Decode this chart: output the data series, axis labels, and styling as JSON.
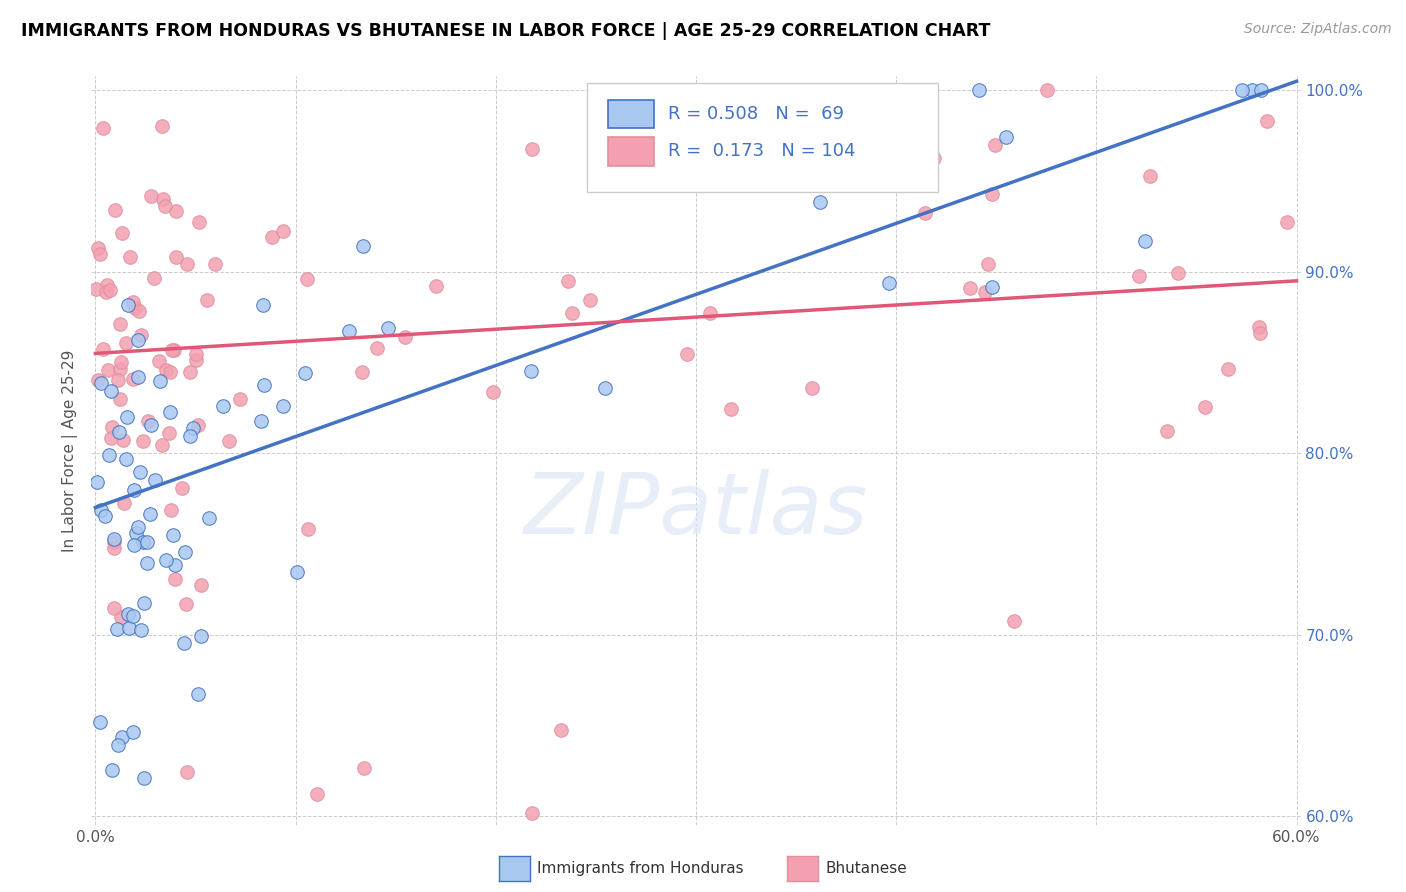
{
  "title": "IMMIGRANTS FROM HONDURAS VS BHUTANESE IN LABOR FORCE | AGE 25-29 CORRELATION CHART",
  "source": "Source: ZipAtlas.com",
  "ylabel": "In Labor Force | Age 25-29",
  "xmin": 0.0,
  "xmax": 0.6,
  "ymin": 0.595,
  "ymax": 1.008,
  "xtick_vals": [
    0.0,
    0.1,
    0.2,
    0.3,
    0.4,
    0.5,
    0.6
  ],
  "xtick_labels": [
    "0.0%",
    "",
    "",
    "",
    "",
    "",
    "60.0%"
  ],
  "ytick_vals": [
    0.6,
    0.7,
    0.8,
    0.9,
    1.0
  ],
  "ytick_labels": [
    "60.0%",
    "70.0%",
    "80.0%",
    "90.0%",
    "100.0%"
  ],
  "honduras_color": "#a8c8f0",
  "bhutanese_color": "#f4a0b0",
  "line_color_honduras": "#4472c4",
  "line_color_bhutanese": "#e05878",
  "R_honduras": 0.508,
  "N_honduras": 69,
  "R_bhutanese": 0.173,
  "N_bhutanese": 104,
  "watermark": "ZIPatlas",
  "hon_line_x0": 0.0,
  "hon_line_y0": 0.77,
  "hon_line_x1": 0.6,
  "hon_line_y1": 1.005,
  "bhu_line_x0": 0.0,
  "bhu_line_y0": 0.855,
  "bhu_line_x1": 0.6,
  "bhu_line_y1": 0.895
}
